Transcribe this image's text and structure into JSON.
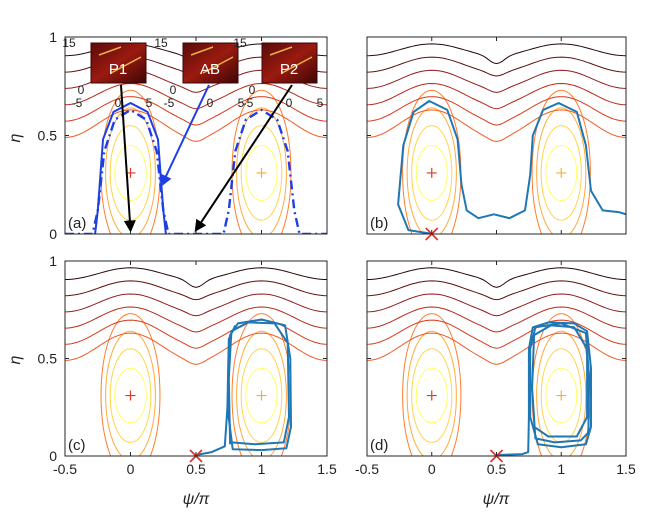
{
  "figure": {
    "ylabel": "η",
    "xlabel": "ψ/π"
  },
  "chart_data": [
    {
      "panel": "(a)",
      "type": "line",
      "xlim": [
        -0.5,
        1.5
      ],
      "ylim": [
        0,
        1
      ],
      "x_ticks": [
        "-0.5",
        "0",
        "0.5",
        "1",
        "1.5"
      ],
      "y_ticks": [
        "0",
        "0.5",
        "1"
      ],
      "x_ticks_shown": false,
      "y_ticks_shown": true,
      "contour_colormap": [
        "#ffff66",
        "#ffd54a",
        "#ffab3a",
        "#ff7c2d",
        "#f05a24",
        "#d93a1a",
        "#b82a1a",
        "#8f1c1c",
        "#5e1010",
        "#260808"
      ],
      "centers": [
        {
          "x": 0,
          "y": 0.31,
          "color": "#e03a24"
        },
        {
          "x": 1,
          "y": 0.31,
          "color": "#f3b13c"
        }
      ],
      "trajectories": [
        {
          "style": "dashdot",
          "color": "#1f3fe6",
          "points": [
            [
              -0.5,
              0
            ],
            [
              -0.29,
              0
            ],
            [
              -0.25,
              0.12
            ],
            [
              -0.2,
              0.42
            ],
            [
              -0.12,
              0.58
            ],
            [
              0,
              0.63
            ],
            [
              0.12,
              0.58
            ],
            [
              0.2,
              0.42
            ],
            [
              0.25,
              0.12
            ],
            [
              0.29,
              0
            ],
            [
              0.71,
              0
            ],
            [
              0.75,
              0.12
            ],
            [
              0.8,
              0.42
            ],
            [
              0.88,
              0.58
            ],
            [
              1,
              0.63
            ],
            [
              1.12,
              0.58
            ],
            [
              1.2,
              0.42
            ],
            [
              1.25,
              0.12
            ],
            [
              1.29,
              0
            ],
            [
              1.5,
              0
            ]
          ]
        },
        {
          "style": "solid",
          "color": "#1f3fe6",
          "points": [
            [
              -0.27,
              0
            ],
            [
              -0.25,
              0.12
            ],
            [
              -0.21,
              0.48
            ],
            [
              -0.13,
              0.62
            ],
            [
              0,
              0.665
            ],
            [
              0.13,
              0.62
            ],
            [
              0.21,
              0.48
            ],
            [
              0.25,
              0.12
            ],
            [
              0.27,
              0
            ]
          ]
        }
      ],
      "insets": [
        {
          "label": "P1",
          "ticks": [
            "15",
            "0",
            "-5",
            "0",
            "5"
          ]
        },
        {
          "label": "AB",
          "ticks": [
            "15",
            "0",
            "-5",
            "0",
            "5"
          ]
        },
        {
          "label": "P2",
          "ticks": [
            "15",
            "0",
            "-5",
            "0",
            "5"
          ]
        }
      ]
    },
    {
      "panel": "(b)",
      "type": "line",
      "xlim": [
        -0.5,
        1.5
      ],
      "ylim": [
        0,
        1
      ],
      "x_ticks": [
        "-0.5",
        "0",
        "0.5",
        "1",
        "1.5"
      ],
      "y_ticks": [
        "0",
        "0.5",
        "1"
      ],
      "x_ticks_shown": false,
      "y_ticks_shown": false,
      "start_marker": {
        "x": 0,
        "y": 0
      },
      "trajectories": [
        {
          "style": "solid",
          "color": "#1f77b4",
          "points": [
            [
              -0.01,
              0.002
            ],
            [
              -0.18,
              0.02
            ],
            [
              -0.26,
              0.15
            ],
            [
              -0.22,
              0.45
            ],
            [
              -0.14,
              0.62
            ],
            [
              -0.02,
              0.675
            ],
            [
              0.12,
              0.63
            ],
            [
              0.2,
              0.48
            ],
            [
              0.23,
              0.25
            ],
            [
              0.27,
              0.12
            ],
            [
              0.36,
              0.08
            ],
            [
              0.48,
              0.1
            ],
            [
              0.6,
              0.08
            ],
            [
              0.72,
              0.12
            ],
            [
              0.76,
              0.3
            ],
            [
              0.78,
              0.5
            ],
            [
              0.86,
              0.63
            ],
            [
              0.98,
              0.665
            ],
            [
              1.12,
              0.62
            ],
            [
              1.19,
              0.45
            ],
            [
              1.23,
              0.22
            ],
            [
              1.32,
              0.12
            ],
            [
              1.45,
              0.11
            ],
            [
              1.5,
              0.1
            ]
          ]
        }
      ]
    },
    {
      "panel": "(c)",
      "type": "line",
      "xlim": [
        -0.5,
        1.5
      ],
      "ylim": [
        0,
        1
      ],
      "x_ticks": [
        "-0.5",
        "0",
        "0.5",
        "1",
        "1.5"
      ],
      "y_ticks": [
        "0",
        "0.5",
        "1"
      ],
      "x_ticks_shown": true,
      "y_ticks_shown": true,
      "start_marker": {
        "x": 0.5,
        "y": 0
      },
      "trajectories": [
        {
          "style": "solid",
          "color": "#1f77b4",
          "points": [
            [
              0.5,
              0.005
            ],
            [
              0.62,
              0.02
            ],
            [
              0.72,
              0.05
            ],
            [
              0.745,
              0.3
            ],
            [
              0.76,
              0.62
            ],
            [
              0.82,
              0.68
            ],
            [
              1.0,
              0.7
            ],
            [
              1.18,
              0.67
            ],
            [
              1.22,
              0.5
            ],
            [
              1.225,
              0.15
            ],
            [
              1.19,
              0.04
            ],
            [
              1.0,
              0.03
            ],
            [
              0.78,
              0.035
            ],
            [
              0.74,
              0.25
            ],
            [
              0.75,
              0.6
            ],
            [
              0.8,
              0.67
            ]
          ]
        },
        {
          "style": "solid",
          "color": "#1f77b4",
          "points": [
            [
              0.76,
              0.06
            ],
            [
              0.75,
              0.4
            ],
            [
              0.77,
              0.64
            ],
            [
              0.9,
              0.685
            ],
            [
              1.1,
              0.68
            ],
            [
              1.2,
              0.58
            ],
            [
              1.21,
              0.2
            ],
            [
              1.17,
              0.07
            ],
            [
              0.95,
              0.06
            ],
            [
              0.77,
              0.07
            ]
          ]
        }
      ]
    },
    {
      "panel": "(d)",
      "type": "line",
      "xlim": [
        -0.5,
        1.5
      ],
      "ylim": [
        0,
        1
      ],
      "x_ticks": [
        "-0.5",
        "0",
        "0.5",
        "1",
        "1.5"
      ],
      "y_ticks": [
        "0",
        "0.5",
        "1"
      ],
      "x_ticks_shown": true,
      "y_ticks_shown": false,
      "start_marker": {
        "x": 0.5,
        "y": 0
      },
      "trajectories": [
        {
          "style": "solid",
          "color": "#1f77b4",
          "points": [
            [
              0.5,
              0.005
            ],
            [
              0.7,
              0.01
            ],
            [
              0.745,
              0.02
            ],
            [
              0.75,
              0.2
            ],
            [
              0.75,
              0.55
            ],
            [
              0.78,
              0.66
            ],
            [
              0.9,
              0.685
            ],
            [
              1.1,
              0.68
            ],
            [
              1.2,
              0.64
            ],
            [
              1.23,
              0.45
            ],
            [
              1.23,
              0.15
            ],
            [
              1.19,
              0.06
            ],
            [
              1.0,
              0.045
            ],
            [
              0.82,
              0.06
            ],
            [
              0.76,
              0.2
            ],
            [
              0.76,
              0.55
            ],
            [
              0.8,
              0.66
            ],
            [
              1.0,
              0.68
            ],
            [
              1.19,
              0.63
            ],
            [
              1.215,
              0.4
            ],
            [
              1.21,
              0.12
            ],
            [
              1.15,
              0.08
            ],
            [
              0.95,
              0.07
            ],
            [
              0.8,
              0.09
            ],
            [
              0.775,
              0.35
            ],
            [
              0.79,
              0.62
            ],
            [
              0.92,
              0.67
            ],
            [
              1.1,
              0.66
            ],
            [
              1.2,
              0.55
            ],
            [
              1.2,
              0.2
            ],
            [
              1.12,
              0.1
            ],
            [
              0.9,
              0.1
            ],
            [
              0.79,
              0.15
            ]
          ]
        }
      ]
    }
  ]
}
